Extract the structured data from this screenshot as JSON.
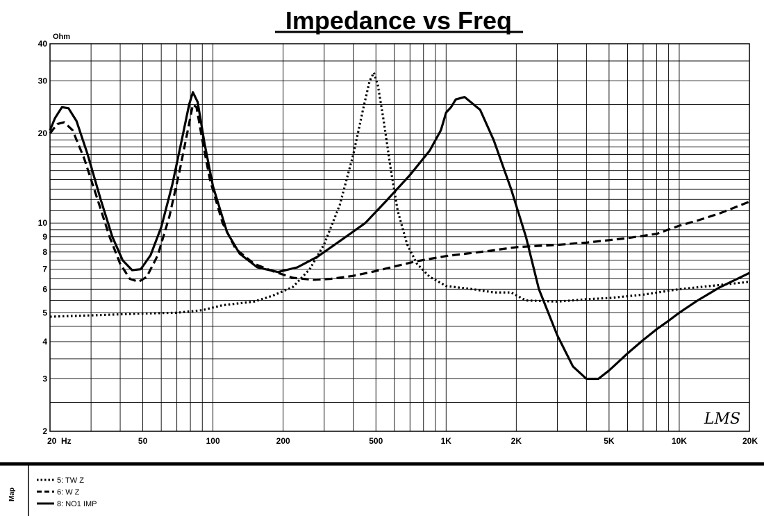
{
  "chart_data": {
    "type": "line",
    "title": "Impedance vs Freq",
    "ylabel": "Ohm",
    "xscale": "log",
    "yscale": "log",
    "xlim": [
      20,
      20000
    ],
    "ylim": [
      2,
      40
    ],
    "grid": true,
    "x_ticks": [
      {
        "value": 20,
        "label": "20  Hz"
      },
      {
        "value": 50,
        "label": "50"
      },
      {
        "value": 100,
        "label": "100"
      },
      {
        "value": 200,
        "label": "200"
      },
      {
        "value": 500,
        "label": "500"
      },
      {
        "value": 1000,
        "label": "1K"
      },
      {
        "value": 2000,
        "label": "2K"
      },
      {
        "value": 5000,
        "label": "5K"
      },
      {
        "value": 10000,
        "label": "10K"
      },
      {
        "value": 20000,
        "label": "20K"
      }
    ],
    "y_ticks": [
      {
        "value": 2,
        "label": "2"
      },
      {
        "value": 3,
        "label": "3"
      },
      {
        "value": 4,
        "label": "4"
      },
      {
        "value": 5,
        "label": "5"
      },
      {
        "value": 6,
        "label": "6"
      },
      {
        "value": 7,
        "label": "7"
      },
      {
        "value": 8,
        "label": "8"
      },
      {
        "value": 9,
        "label": "9"
      },
      {
        "value": 10,
        "label": "10"
      },
      {
        "value": 20,
        "label": "20"
      },
      {
        "value": 30,
        "label": "30"
      },
      {
        "value": 40,
        "label": "40"
      }
    ],
    "series": [
      {
        "name": "5: TW Z",
        "style": "dotted",
        "color": "#000000",
        "points": [
          [
            20,
            4.85
          ],
          [
            30,
            4.9
          ],
          [
            50,
            4.97
          ],
          [
            70,
            5.0
          ],
          [
            90,
            5.1
          ],
          [
            110,
            5.3
          ],
          [
            150,
            5.45
          ],
          [
            180,
            5.7
          ],
          [
            220,
            6.1
          ],
          [
            260,
            7.0
          ],
          [
            300,
            8.5
          ],
          [
            350,
            11.5
          ],
          [
            400,
            17.0
          ],
          [
            440,
            24.0
          ],
          [
            470,
            30.0
          ],
          [
            490,
            32.0
          ],
          [
            510,
            29.0
          ],
          [
            540,
            22.0
          ],
          [
            580,
            15.0
          ],
          [
            620,
            11.0
          ],
          [
            680,
            8.5
          ],
          [
            750,
            7.3
          ],
          [
            850,
            6.6
          ],
          [
            1000,
            6.15
          ],
          [
            1300,
            6.0
          ],
          [
            1600,
            5.85
          ],
          [
            1900,
            5.85
          ],
          [
            2200,
            5.5
          ],
          [
            3000,
            5.45
          ],
          [
            4000,
            5.55
          ],
          [
            5000,
            5.6
          ],
          [
            7000,
            5.75
          ],
          [
            10000,
            6.0
          ],
          [
            15000,
            6.2
          ],
          [
            20000,
            6.35
          ]
        ]
      },
      {
        "name": "6: W Z",
        "style": "dashed",
        "color": "#000000",
        "points": [
          [
            20,
            20.0
          ],
          [
            21.5,
            21.5
          ],
          [
            23,
            21.8
          ],
          [
            25,
            20.5
          ],
          [
            28,
            16.5
          ],
          [
            32,
            12.0
          ],
          [
            36,
            9.0
          ],
          [
            40,
            7.3
          ],
          [
            44,
            6.5
          ],
          [
            48,
            6.35
          ],
          [
            52,
            6.6
          ],
          [
            58,
            7.8
          ],
          [
            65,
            10.5
          ],
          [
            72,
            15.0
          ],
          [
            78,
            20.5
          ],
          [
            82,
            25.0
          ],
          [
            85,
            24.5
          ],
          [
            90,
            19.0
          ],
          [
            97,
            14.0
          ],
          [
            110,
            10.0
          ],
          [
            125,
            8.2
          ],
          [
            150,
            7.3
          ],
          [
            180,
            6.9
          ],
          [
            220,
            6.55
          ],
          [
            270,
            6.45
          ],
          [
            320,
            6.5
          ],
          [
            400,
            6.65
          ],
          [
            500,
            6.9
          ],
          [
            600,
            7.15
          ],
          [
            750,
            7.45
          ],
          [
            1000,
            7.75
          ],
          [
            1500,
            8.05
          ],
          [
            2000,
            8.3
          ],
          [
            3000,
            8.45
          ],
          [
            4000,
            8.6
          ],
          [
            6000,
            8.9
          ],
          [
            8000,
            9.2
          ],
          [
            10000,
            9.8
          ],
          [
            12000,
            10.2
          ],
          [
            15000,
            10.8
          ],
          [
            20000,
            11.8
          ]
        ]
      },
      {
        "name": "8: NO1 IMP",
        "style": "solid",
        "color": "#000000",
        "points": [
          [
            20,
            20.5
          ],
          [
            21,
            22.5
          ],
          [
            22.5,
            24.5
          ],
          [
            24,
            24.3
          ],
          [
            26,
            22.0
          ],
          [
            29,
            17.0
          ],
          [
            33,
            12.0
          ],
          [
            37,
            9.0
          ],
          [
            41,
            7.5
          ],
          [
            45,
            6.95
          ],
          [
            49,
            7.0
          ],
          [
            54,
            7.8
          ],
          [
            60,
            9.7
          ],
          [
            67,
            13.5
          ],
          [
            74,
            19.5
          ],
          [
            79,
            25.0
          ],
          [
            82,
            27.5
          ],
          [
            86,
            25.5
          ],
          [
            92,
            18.5
          ],
          [
            100,
            13.3
          ],
          [
            115,
            9.3
          ],
          [
            130,
            7.9
          ],
          [
            155,
            7.1
          ],
          [
            190,
            6.85
          ],
          [
            230,
            7.1
          ],
          [
            280,
            7.7
          ],
          [
            350,
            8.7
          ],
          [
            450,
            10.0
          ],
          [
            550,
            11.8
          ],
          [
            700,
            14.5
          ],
          [
            850,
            17.5
          ],
          [
            950,
            20.5
          ],
          [
            1000,
            23.5
          ],
          [
            1050,
            24.5
          ],
          [
            1100,
            26.0
          ],
          [
            1200,
            26.5
          ],
          [
            1400,
            24.0
          ],
          [
            1600,
            19.0
          ],
          [
            1900,
            13.0
          ],
          [
            2200,
            9.0
          ],
          [
            2500,
            6.0
          ],
          [
            3000,
            4.2
          ],
          [
            3500,
            3.3
          ],
          [
            4000,
            3.0
          ],
          [
            4500,
            3.0
          ],
          [
            5000,
            3.2
          ],
          [
            6000,
            3.65
          ],
          [
            7000,
            4.05
          ],
          [
            8000,
            4.4
          ],
          [
            9000,
            4.7
          ],
          [
            10000,
            5.0
          ],
          [
            12000,
            5.5
          ],
          [
            15000,
            6.1
          ],
          [
            20000,
            6.8
          ]
        ]
      }
    ],
    "legend_position": "bottom-left"
  },
  "footer": {
    "map_label": "Map",
    "logo_text": "LMS"
  }
}
